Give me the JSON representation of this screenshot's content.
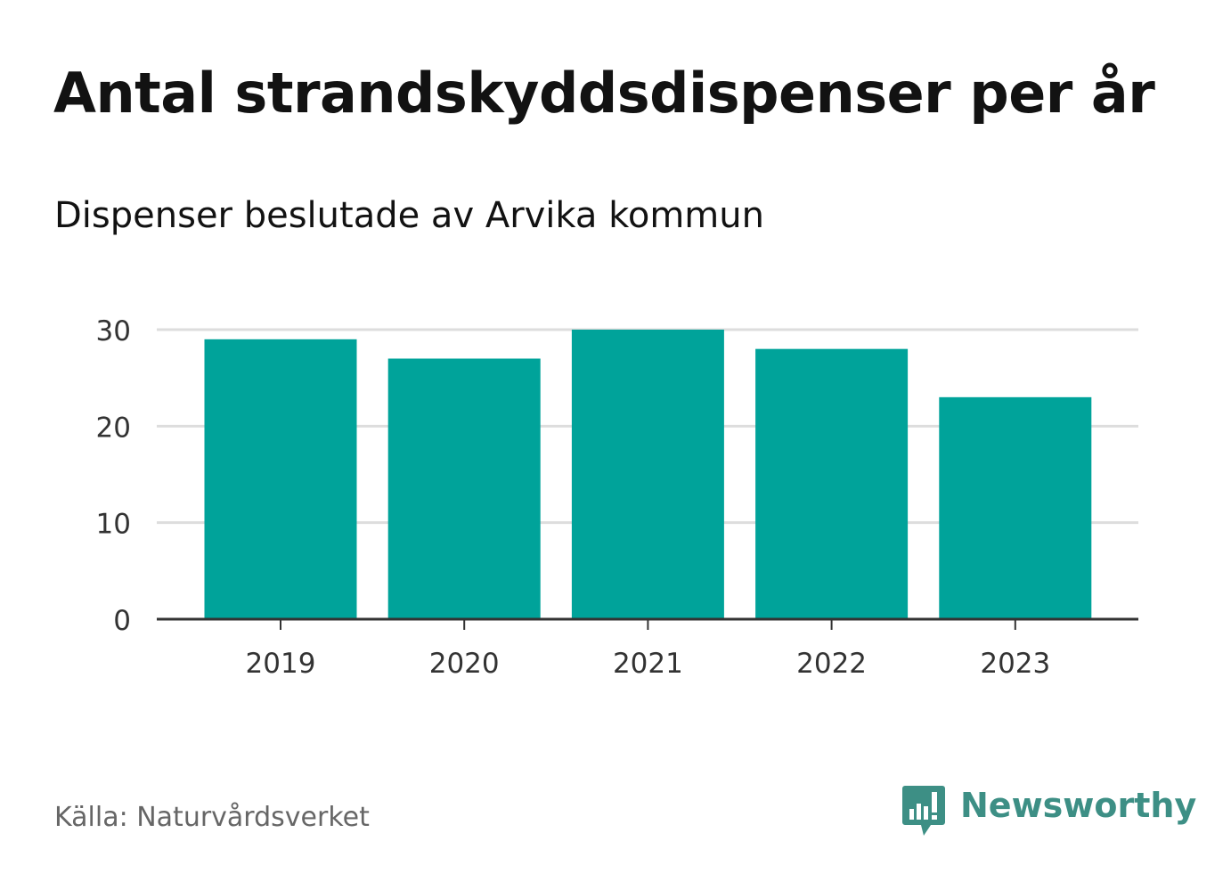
{
  "header": {
    "title": "Antal strandskyddsdispenser per år",
    "subtitle": "Dispenser beslutade av Arvika kommun"
  },
  "footer": {
    "source": "Källa: Naturvårdsverket",
    "brand": "Newsworthy"
  },
  "colors": {
    "bar": "#00a39a",
    "grid": "#dddddd",
    "axis": "#333333",
    "text": "#333333",
    "brand": "#3d8f85"
  },
  "chart_data": {
    "type": "bar",
    "title": "Antal strandskyddsdispenser per år",
    "subtitle": "Dispenser beslutade av Arvika kommun",
    "categories": [
      "2019",
      "2020",
      "2021",
      "2022",
      "2023"
    ],
    "values": [
      29,
      27,
      30,
      28,
      23
    ],
    "xlabel": "",
    "ylabel": "",
    "ylim": [
      0,
      30
    ],
    "yticks": [
      0,
      10,
      20,
      30
    ],
    "grid": true,
    "legend": "none"
  }
}
